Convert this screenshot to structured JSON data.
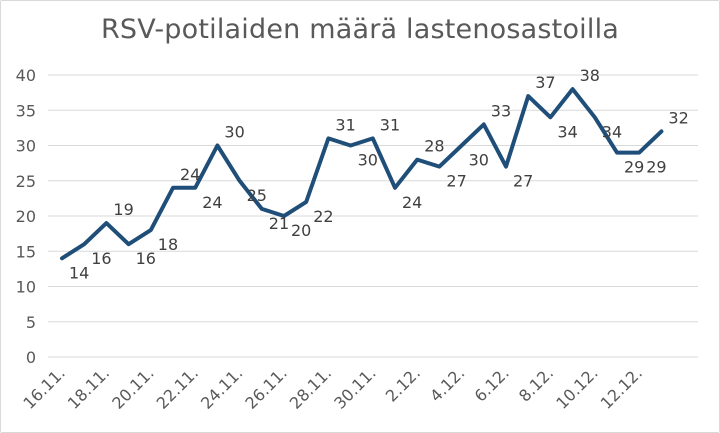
{
  "chart_data": {
    "type": "line",
    "title": "RSV-potilaiden määrä lastenosastoilla",
    "xlabel": "",
    "ylabel": "",
    "ylim": [
      0,
      40
    ],
    "yticks": [
      "0",
      "5",
      "10",
      "15",
      "20",
      "25",
      "30",
      "35",
      "40"
    ],
    "grid": true,
    "legend": "none",
    "color": "#1f4e79",
    "x": [
      "16.11.",
      "17.11.",
      "18.11.",
      "19.11.",
      "20.11.",
      "21.11.",
      "22.11.",
      "23.11.",
      "24.11.",
      "25.11.",
      "26.11.",
      "27.11.",
      "28.11.",
      "29.11.",
      "30.11.",
      "1.12.",
      "2.12.",
      "3.12.",
      "4.12.",
      "5.12.",
      "6.12.",
      "7.12.",
      "8.12.",
      "9.12.",
      "10.12.",
      "11.12.",
      "12.12.",
      "13.12."
    ],
    "xtick_labels": [
      "16.11.",
      "18.11.",
      "20.11.",
      "22.11.",
      "24.11.",
      "26.11.",
      "28.11.",
      "30.11.",
      "2.12.",
      "4.12.",
      "6.12.",
      "8.12.",
      "10.12.",
      "12.12."
    ],
    "values": [
      14,
      16,
      19,
      16,
      18,
      24,
      24,
      30,
      25,
      21,
      20,
      22,
      31,
      30,
      31,
      24,
      28,
      27,
      30,
      33,
      27,
      37,
      34,
      38,
      34,
      29,
      29,
      32
    ]
  }
}
